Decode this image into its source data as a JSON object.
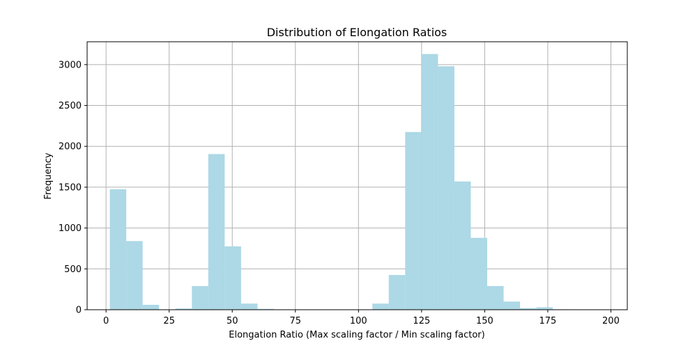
{
  "chart_data": {
    "type": "bar",
    "title": "Distribution of Elongation Ratios",
    "xlabel": "Elongation Ratio (Max scaling factor / Min scaling factor)",
    "ylabel": "Frequency",
    "xlim": [
      -7.5,
      206.5
    ],
    "ylim": [
      0,
      3280
    ],
    "x_ticks": [
      0,
      25,
      50,
      75,
      100,
      125,
      150,
      175,
      200
    ],
    "x_tick_labels": [
      "0",
      "25",
      "50",
      "75",
      "100",
      "125",
      "150",
      "175",
      "200"
    ],
    "y_ticks": [
      0,
      500,
      1000,
      1500,
      2000,
      2500,
      3000
    ],
    "y_tick_labels": [
      "0",
      "500",
      "1000",
      "1500",
      "2000",
      "2500",
      "3000"
    ],
    "grid": true,
    "legend": "none",
    "bin_edges": [
      1.5,
      8.0,
      14.5,
      21.0,
      27.5,
      34.0,
      40.5,
      47.0,
      53.5,
      60.0,
      66.5,
      73.0,
      79.5,
      86.0,
      92.5,
      99.0,
      105.5,
      112.0,
      118.5,
      125.0,
      131.5,
      138.0,
      144.5,
      151.0,
      157.5,
      164.0,
      170.5,
      177.0,
      183.5
    ],
    "values": [
      1475,
      840,
      60,
      2,
      15,
      290,
      1905,
      775,
      75,
      10,
      0,
      0,
      0,
      0,
      0,
      0,
      75,
      425,
      2175,
      3130,
      2980,
      1570,
      880,
      290,
      100,
      20,
      30,
      5
    ],
    "colors": {
      "bar": "#add8e6",
      "grid": "#b0b0b0",
      "axes": "#000000"
    }
  }
}
